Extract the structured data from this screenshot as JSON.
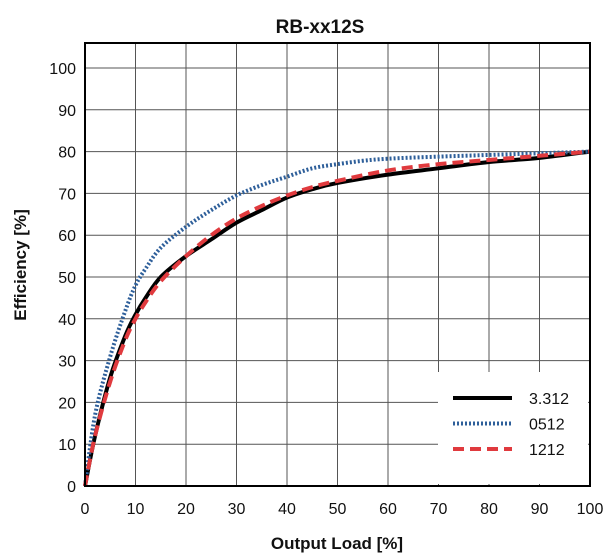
{
  "chart_data": {
    "type": "line",
    "title": "RB-xx12S",
    "xlabel": "Output Load [%]",
    "ylabel": "Efficiency [%]",
    "xlim": [
      0,
      100
    ],
    "ylim": [
      0,
      105
    ],
    "x_ticks": [
      0,
      10,
      20,
      30,
      40,
      50,
      60,
      70,
      80,
      90,
      100
    ],
    "y_ticks": [
      0,
      10,
      20,
      30,
      40,
      50,
      60,
      70,
      80,
      90,
      100
    ],
    "grid": true,
    "legend_position": "bottom-right",
    "series": [
      {
        "name": "3.312",
        "color": "#000000",
        "style": "solid",
        "x": [
          0,
          2,
          5,
          8,
          10,
          12,
          15,
          20,
          25,
          30,
          35,
          40,
          45,
          50,
          60,
          70,
          80,
          90,
          100
        ],
        "y": [
          0,
          12,
          26,
          36,
          41,
          45,
          50,
          55,
          59,
          63,
          66,
          69,
          71,
          72.5,
          74.5,
          76,
          77.5,
          78.5,
          80
        ]
      },
      {
        "name": "0512",
        "color": "#2e5f9a",
        "style": "dotted",
        "x": [
          0,
          2,
          5,
          8,
          10,
          12,
          15,
          20,
          25,
          30,
          35,
          40,
          45,
          50,
          55,
          60,
          70,
          80,
          90,
          100
        ],
        "y": [
          0,
          17,
          31,
          42,
          48,
          52,
          57,
          62,
          66,
          69.5,
          72,
          74,
          76,
          77,
          77.8,
          78.3,
          78.8,
          79.2,
          79.6,
          80
        ]
      },
      {
        "name": "1212",
        "color": "#e03a3e",
        "style": "dashed",
        "x": [
          0,
          2,
          5,
          8,
          10,
          12,
          15,
          20,
          25,
          30,
          35,
          40,
          45,
          50,
          60,
          70,
          80,
          90,
          100
        ],
        "y": [
          0,
          12,
          25,
          35,
          40,
          44,
          49,
          55,
          60,
          64,
          67,
          69.5,
          71.5,
          73,
          75.5,
          77,
          78,
          79,
          80
        ]
      }
    ]
  }
}
